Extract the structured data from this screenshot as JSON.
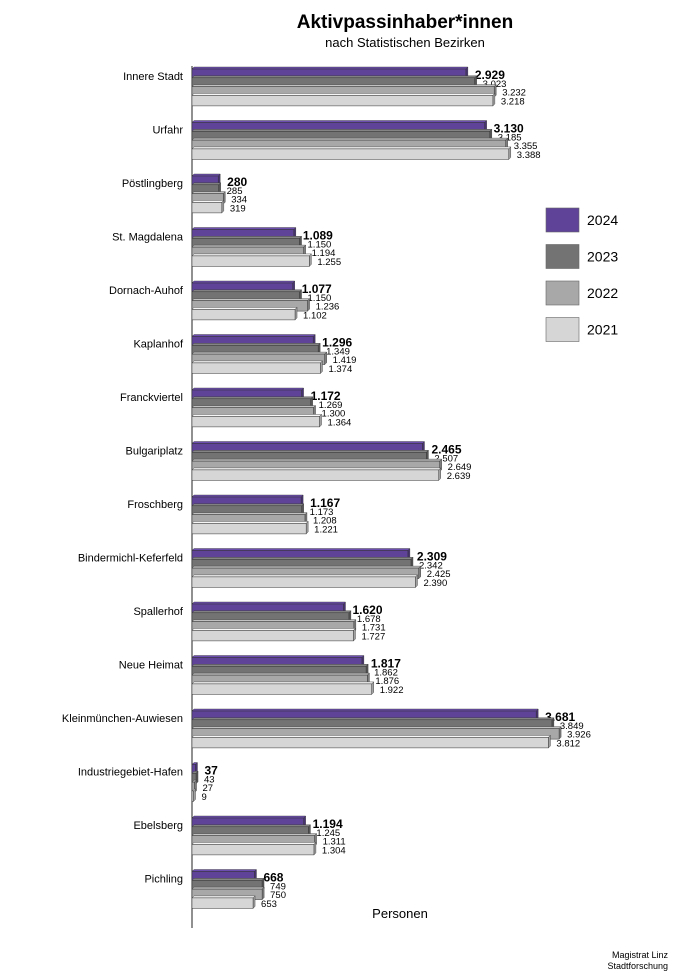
{
  "chart_data": {
    "type": "bar",
    "orientation": "horizontal",
    "title": "Aktivpassinhaber*innen",
    "subtitle": "nach Statistischen Bezirken",
    "xlabel": "Personen",
    "ylabel": "",
    "xlim": [
      0,
      4000
    ],
    "grid": false,
    "legend_position": "right",
    "categories": [
      "Innere Stadt",
      "Urfahr",
      "Pöstlingberg",
      "St. Magdalena",
      "Dornach-Auhof",
      "Kaplanhof",
      "Franckviertel",
      "Bulgariplatz",
      "Froschberg",
      "Bindermichl-Keferfeld",
      "Spallerhof",
      "Neue Heimat",
      "Kleinmünchen-Auwiesen",
      "Industriegebiet-Hafen",
      "Ebelsberg",
      "Pichling"
    ],
    "series": [
      {
        "name": "2024",
        "color": "#5e4399",
        "bold_labels": true,
        "values": [
          2929,
          3130,
          280,
          1089,
          1077,
          1296,
          1172,
          2465,
          1167,
          2309,
          1620,
          1817,
          3681,
          37,
          1194,
          668
        ],
        "labels": [
          "2.929",
          "3.130",
          "280",
          "1.089",
          "1.077",
          "1.296",
          "1.172",
          "2.465",
          "1.167",
          "2.309",
          "1.620",
          "1.817",
          "3.681",
          "37",
          "1.194",
          "668"
        ]
      },
      {
        "name": "2023",
        "color": "#737373",
        "bold_labels": false,
        "values": [
          3023,
          3185,
          285,
          1150,
          1150,
          1349,
          1269,
          2507,
          1173,
          2342,
          1678,
          1862,
          3849,
          43,
          1245,
          749
        ],
        "labels": [
          "3.023",
          "3.185",
          "285",
          "1.150",
          "1.150",
          "1.349",
          "1.269",
          "2.507",
          "1.173",
          "2.342",
          "1.678",
          "1.862",
          "3.849",
          "43",
          "1.245",
          "749"
        ]
      },
      {
        "name": "2022",
        "color": "#a8a8a8",
        "bold_labels": false,
        "values": [
          3232,
          3355,
          334,
          1194,
          1236,
          1419,
          1300,
          2649,
          1208,
          2425,
          1731,
          1876,
          3926,
          27,
          1311,
          750
        ],
        "labels": [
          "3.232",
          "3.355",
          "334",
          "1.194",
          "1.236",
          "1.419",
          "1.300",
          "2.649",
          "1.208",
          "2.425",
          "1.731",
          "1.876",
          "3.926",
          "27",
          "1.311",
          "750"
        ]
      },
      {
        "name": "2021",
        "color": "#d6d6d6",
        "bold_labels": false,
        "values": [
          3218,
          3388,
          319,
          1255,
          1102,
          1374,
          1364,
          2639,
          1221,
          2390,
          1727,
          1922,
          3812,
          9,
          1304,
          653
        ],
        "labels": [
          "3.218",
          "3.388",
          "319",
          "1.255",
          "1.102",
          "1.374",
          "1.364",
          "2.639",
          "1.221",
          "2.390",
          "1.727",
          "1.922",
          "3.812",
          "9",
          "1.304",
          "653"
        ]
      }
    ]
  },
  "footer": {
    "line1": "Magistrat Linz",
    "line2": "Stadtforschung"
  }
}
